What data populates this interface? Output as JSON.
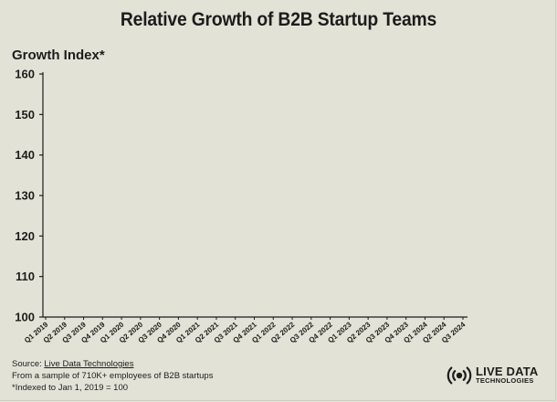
{
  "chart_data": {
    "type": "line",
    "title": "Relative Growth of B2B Startup Teams",
    "ylabel": "Growth Index*",
    "xlabel": "",
    "ylim": [
      100,
      160
    ],
    "yticks": [
      100,
      110,
      120,
      130,
      140,
      150,
      160
    ],
    "categories": [
      "Q1 2019",
      "Q2 2019",
      "Q3 2019",
      "Q4 2019",
      "Q1 2020",
      "Q2 2020",
      "Q3 2020",
      "Q4 2020",
      "Q1 2021",
      "Q2 2021",
      "Q3 2021",
      "Q4 2021",
      "Q1 2022",
      "Q2 2022",
      "Q3 2022",
      "Q4 2022",
      "Q1 2023",
      "Q2 2023",
      "Q3 2023",
      "Q4 2023",
      "Q1 2024",
      "Q2 2024",
      "Q3 2024"
    ],
    "series": [],
    "grid": false
  },
  "footer": {
    "source_prefix": "Source: ",
    "source_link": "Live Data Technologies",
    "sample_note": "From a sample of 710K+ employees of B2B startups",
    "index_note": "*Indexed to Jan 1, 2019 = 100"
  },
  "logo": {
    "line1": "LIVE DATA",
    "line2": "TECHNOLOGIES",
    "icon": "broadcast-signal-icon"
  },
  "colors": {
    "background": "#e3e2d6",
    "axis": "#1c1c1c",
    "text": "#1c1c1c"
  }
}
